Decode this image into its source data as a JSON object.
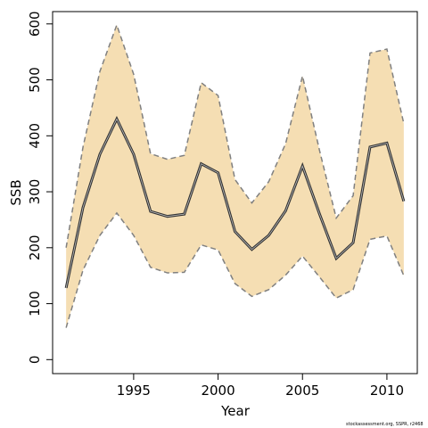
{
  "chart_data": {
    "type": "area",
    "xlabel": "Year",
    "ylabel": "SSB",
    "xlim": [
      1990.2,
      2011.8
    ],
    "ylim": [
      -25,
      622
    ],
    "x_ticks": [
      1995,
      2000,
      2005,
      2010
    ],
    "y_ticks": [
      0,
      100,
      200,
      300,
      400,
      500,
      600
    ],
    "x": [
      1991,
      1992,
      1993,
      1994,
      1995,
      1996,
      1997,
      1998,
      1999,
      2000,
      2001,
      2002,
      2003,
      2004,
      2005,
      2006,
      2007,
      2008,
      2009,
      2010,
      2011
    ],
    "series": [
      {
        "role": "estimate",
        "values": [
          128,
          272,
          367,
          430,
          367,
          265,
          256,
          260,
          350,
          334,
          229,
          197,
          222,
          266,
          346,
          261,
          181,
          209,
          380,
          387,
          283
        ]
      },
      {
        "role": "upper",
        "values": [
          200,
          380,
          515,
          598,
          510,
          368,
          358,
          365,
          495,
          472,
          322,
          280,
          318,
          386,
          507,
          375,
          253,
          293,
          548,
          555,
          422
        ]
      },
      {
        "role": "lower",
        "values": [
          57,
          160,
          222,
          262,
          222,
          165,
          155,
          156,
          205,
          196,
          136,
          113,
          125,
          151,
          185,
          148,
          110,
          125,
          215,
          221,
          150
        ]
      }
    ],
    "grid": false,
    "colors": {
      "band": "#f5deb3",
      "line": "#333333",
      "ci_line": "#808080"
    }
  },
  "footnote": "stockassessment.org, SSPR, r2468"
}
